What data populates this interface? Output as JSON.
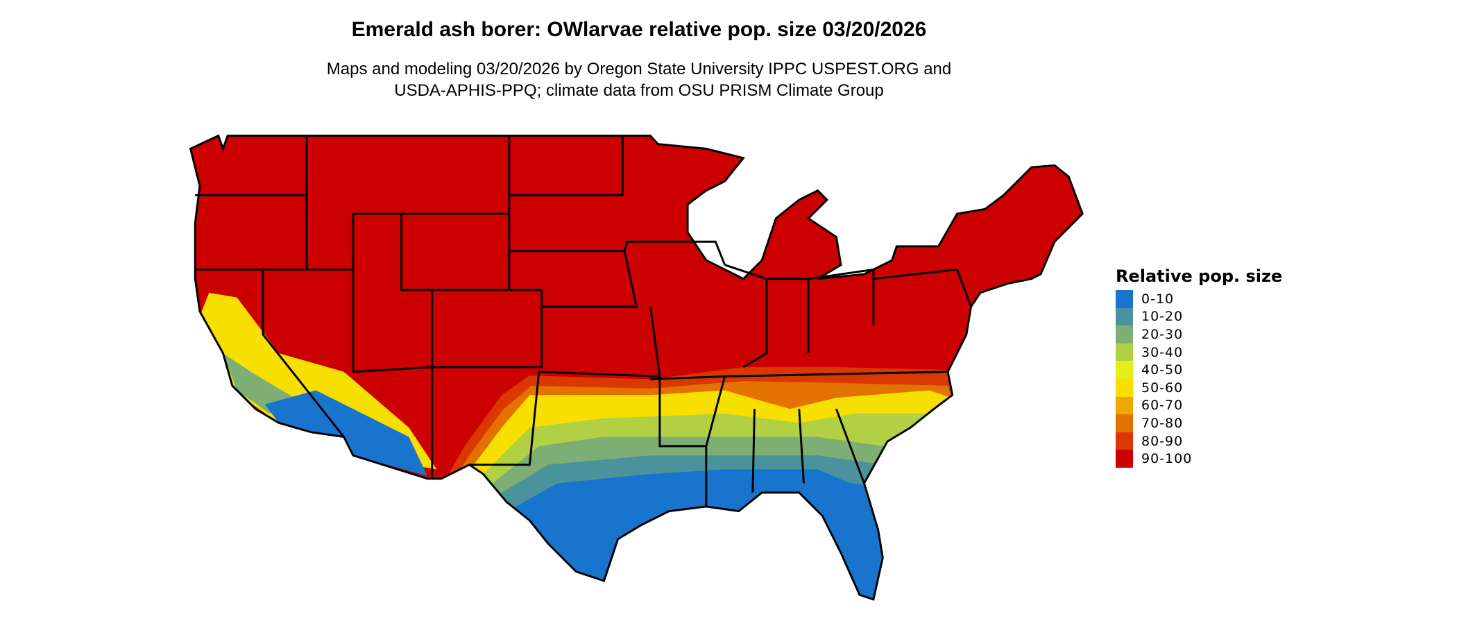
{
  "title": "Emerald ash borer: OWlarvae relative pop. size 03/20/2026",
  "subtitle_line1": "Maps and modeling 03/20/2026 by Oregon State University IPPC USPEST.ORG and",
  "subtitle_line2": "USDA-APHIS-PPQ; climate data from OSU PRISM Climate Group",
  "map": {
    "region": "Contiguous United States",
    "dominant_class": "90-100",
    "border_color": "#000000"
  },
  "legend": {
    "title": "Relative pop. size",
    "items": [
      {
        "label": "0-10",
        "color": "#1874cd"
      },
      {
        "label": "10-20",
        "color": "#4a939c"
      },
      {
        "label": "20-30",
        "color": "#7dae74"
      },
      {
        "label": "30-40",
        "color": "#b2d043"
      },
      {
        "label": "40-50",
        "color": "#e5ee16"
      },
      {
        "label": "50-60",
        "color": "#f7e000"
      },
      {
        "label": "60-70",
        "color": "#eea900"
      },
      {
        "label": "70-80",
        "color": "#e47200"
      },
      {
        "label": "80-90",
        "color": "#da3800"
      },
      {
        "label": "90-100",
        "color": "#cc0000"
      }
    ]
  }
}
